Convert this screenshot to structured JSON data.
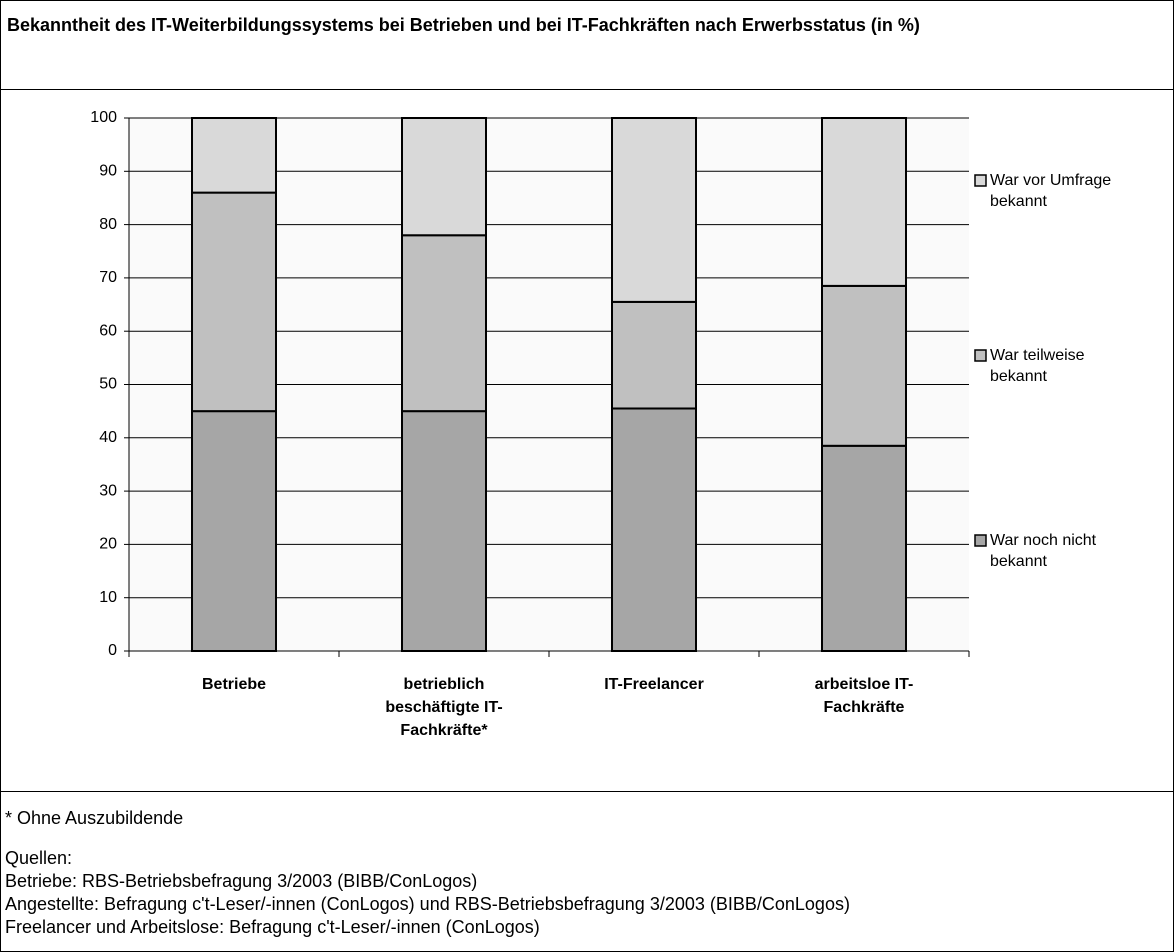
{
  "chart_data": {
    "type": "bar",
    "stacked": true,
    "title": "Bekanntheit des IT-Weiterbildungssystems bei Betrieben und bei IT-Fachkräften nach Erwerbsstatus (in %)",
    "categories": [
      "Betriebe",
      "betrieblich beschäftigte IT-Fachkräfte*",
      "IT-Freelancer",
      "arbeitsloe IT-Fachkräfte"
    ],
    "series": [
      {
        "name": "War noch nicht bekannt",
        "color": "#a6a6a6",
        "values": [
          45,
          45,
          45.5,
          38.5
        ]
      },
      {
        "name": "War teilweise bekannt",
        "color": "#c0c0c0",
        "values": [
          41,
          33,
          20,
          30
        ]
      },
      {
        "name": "War vor Umfrage bekannt",
        "color": "#d9d9d9",
        "values": [
          14,
          22,
          34.5,
          31.5
        ]
      }
    ],
    "ylim": [
      0,
      100
    ],
    "yticks": [
      0,
      10,
      20,
      30,
      40,
      50,
      60,
      70,
      80,
      90,
      100
    ],
    "grid": true,
    "legend": "right"
  },
  "footnote": "* Ohne Auszubildende",
  "sources": {
    "heading": "Quellen:",
    "lines": [
      "Betriebe: RBS-Betriebsbefragung 3/2003 (BIBB/ConLogos)",
      "Angestellte: Befragung c't-Leser/-innen (ConLogos) und RBS-Betriebsbefragung 3/2003 (BIBB/ConLogos)",
      "Freelancer und Arbeitslose: Befragung c't-Leser/-innen (ConLogos)"
    ]
  }
}
